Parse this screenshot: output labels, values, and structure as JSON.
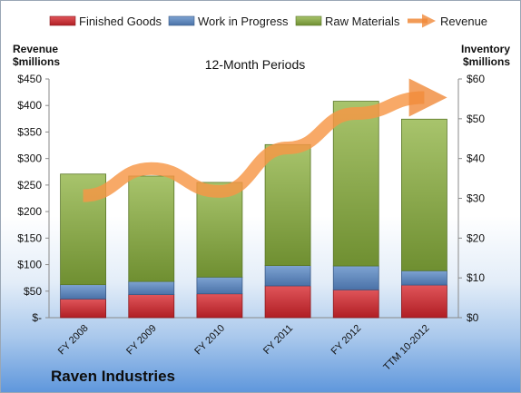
{
  "chart_data": {
    "type": "bar",
    "subtype": "stacked bar with line overlay, dual y-axis",
    "title": "12-Month Periods",
    "company": "Raven Industries",
    "categories": [
      "FY 2008",
      "FY 2009",
      "FY 2010",
      "FY 2011",
      "FY 2012",
      "TTM 10-2012"
    ],
    "left_axis": {
      "label_line1": "Revenue",
      "label_line2": "$millions",
      "ylim": [
        0,
        450
      ],
      "ticks": [
        0,
        50,
        100,
        150,
        200,
        250,
        300,
        350,
        400,
        450
      ],
      "tick_labels": [
        "$-",
        "$50",
        "$100",
        "$150",
        "$200",
        "$250",
        "$300",
        "$350",
        "$400",
        "$450"
      ]
    },
    "right_axis": {
      "label_line1": "Inventory",
      "label_line2": "$millions",
      "ylim": [
        0,
        60
      ],
      "ticks": [
        0,
        10,
        20,
        30,
        40,
        50,
        60
      ],
      "tick_labels": [
        "$0",
        "$10",
        "$20",
        "$30",
        "$40",
        "$50",
        "$60"
      ]
    },
    "series": [
      {
        "name": "Finished Goods",
        "axis": "right",
        "kind": "bar",
        "color": "#c0272d",
        "values": [
          4.7,
          5.8,
          6.0,
          8.0,
          7.0,
          8.2
        ]
      },
      {
        "name": "Work in Progress",
        "axis": "right",
        "kind": "bar",
        "color": "#4f81bd",
        "values": [
          3.6,
          3.3,
          4.2,
          5.1,
          6.0,
          3.6
        ]
      },
      {
        "name": "Raw Materials",
        "axis": "right",
        "kind": "bar",
        "color": "#9bbb59",
        "values": [
          27.8,
          26.5,
          23.8,
          30.4,
          41.4,
          38.1
        ]
      },
      {
        "name": "Revenue",
        "axis": "left",
        "kind": "line",
        "color": "#f79646",
        "values": [
          230,
          281,
          238,
          320,
          385,
          415
        ]
      }
    ],
    "legend_position": "top",
    "grid": false
  }
}
